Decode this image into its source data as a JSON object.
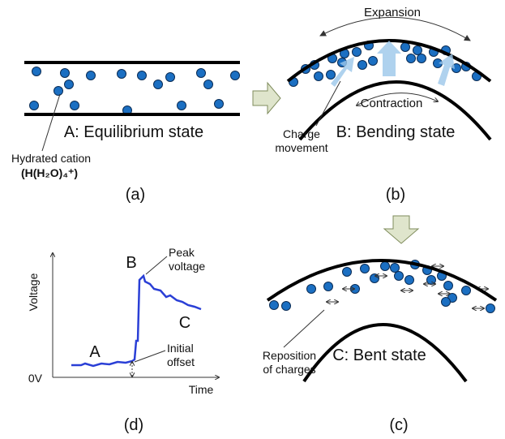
{
  "panel_a": {
    "state": "A: Equilibrium state",
    "cation": "Hydrated cation",
    "formula": "(H(H₂O)₄⁺)",
    "caption": "(a)"
  },
  "panel_b": {
    "expansion": "Expansion",
    "contraction": "Contraction",
    "charge_movement": [
      "Charge",
      "movement"
    ],
    "state": "B: Bending state",
    "caption": "(b)"
  },
  "panel_c": {
    "reposition": [
      "Reposition",
      "of charges"
    ],
    "state": "C: Bent state",
    "caption": "(c)"
  },
  "panel_d": {
    "y_axis": "Voltage",
    "origin": "0V",
    "x_axis": "Time",
    "point_a": "A",
    "point_b": "B",
    "point_c": "C",
    "peak": [
      "Peak",
      "voltage"
    ],
    "offset": [
      "Initial",
      "offset"
    ],
    "caption": "(d)"
  }
}
